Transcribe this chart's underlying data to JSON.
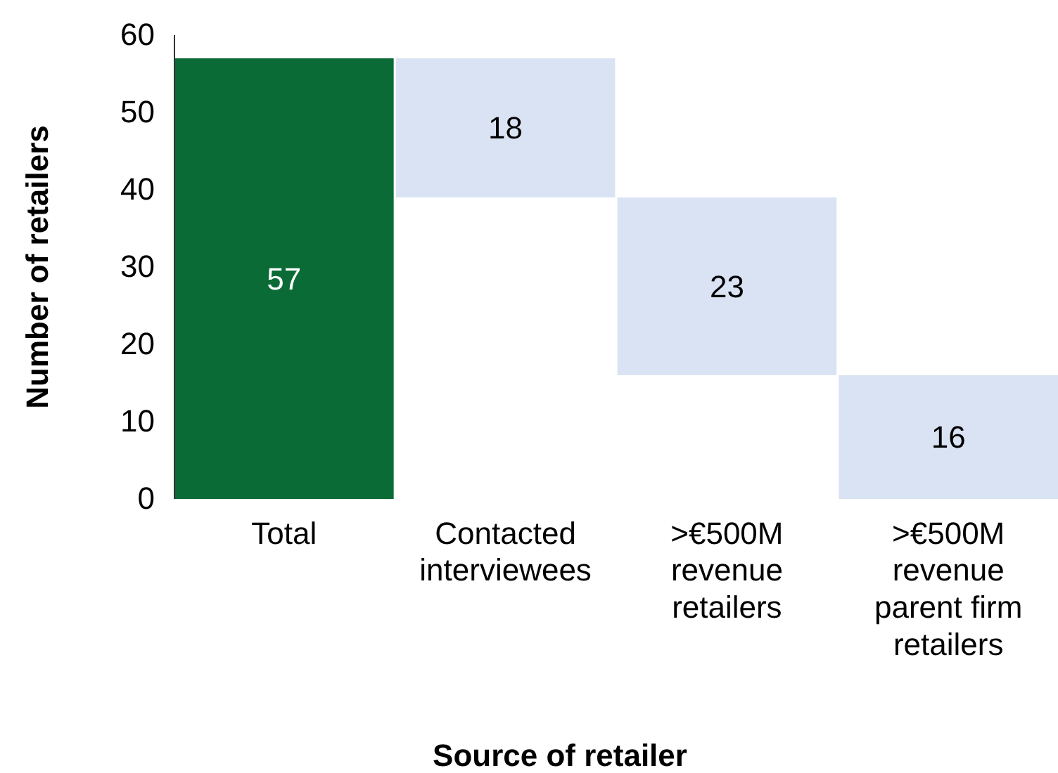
{
  "chart_data": {
    "type": "bar",
    "xlabel": "Source of retailer",
    "ylabel": "Number of retailers",
    "categories": [
      "Total",
      "Contacted interviewees",
      ">€500M revenue retailers",
      ">€500M revenue parent firm retailers"
    ],
    "values": [
      57,
      18,
      23,
      16
    ],
    "base": [
      0,
      39,
      16,
      0
    ],
    "colors": [
      "#0a6b36",
      "#dae3f3",
      "#dae3f3",
      "#dae3f3"
    ],
    "ylim": [
      0,
      60
    ],
    "yticks": [
      0,
      10,
      20,
      30,
      40,
      50,
      60
    ],
    "grid": false,
    "data_labels": true
  }
}
